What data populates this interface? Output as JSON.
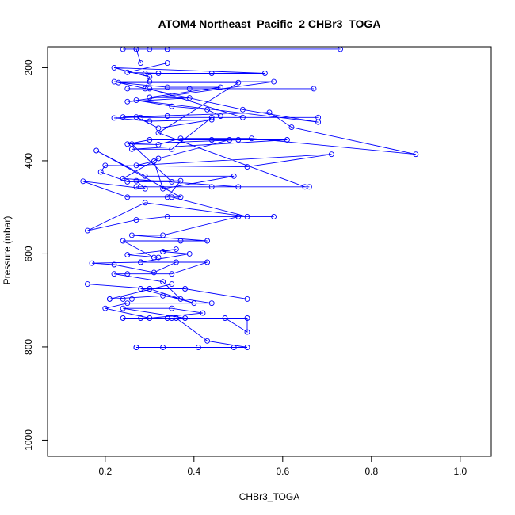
{
  "chart_data": {
    "type": "line",
    "title": "ATOM4 Northeast_Pacific_2 CHBr3_TOGA",
    "xlabel": "CHBr3_TOGA",
    "ylabel": "Pressure (mbar)",
    "xlim": [
      0.07,
      1.07
    ],
    "ylim": [
      1035,
      155
    ],
    "y_inverted": true,
    "x_ticks": [
      0.2,
      0.4,
      0.6,
      0.8,
      1.0
    ],
    "x_tick_labels": [
      "0.2",
      "0.4",
      "0.6",
      "0.8",
      "1.0"
    ],
    "y_ticks": [
      200,
      400,
      600,
      800,
      1000
    ],
    "y_tick_labels": [
      "200",
      "400",
      "600",
      "800",
      "1000"
    ],
    "line_color": "#0000ff",
    "marker": "open-circle",
    "grid": false,
    "series": [
      {
        "x": [
          0.27,
          0.33,
          0.41,
          0.27,
          0.49,
          0.52,
          0.43,
          0.36,
          0.24,
          0.35,
          0.52,
          0.52,
          0.47,
          0.34,
          0.28,
          0.38,
          0.24,
          0.35,
          0.42,
          0.3,
          0.2,
          0.25,
          0.44,
          0.33,
          0.21,
          0.26,
          0.52,
          0.38,
          0.28,
          0.4,
          0.3,
          0.16,
          0.35,
          0.21,
          0.24,
          0.37,
          0.33,
          0.22,
          0.25,
          0.35,
          0.43,
          0.28,
          0.36,
          0.31,
          0.22,
          0.17,
          0.28,
          0.39,
          0.33,
          0.36,
          0.25,
          0.32,
          0.31,
          0.24,
          0.37,
          0.43,
          0.26,
          0.33,
          0.5,
          0.58,
          0.34,
          0.27,
          0.16,
          0.29,
          0.52,
          0.35,
          0.25,
          0.15,
          0.29,
          0.27,
          0.37,
          0.34,
          0.37,
          0.18,
          0.29,
          0.49,
          0.33,
          0.31,
          0.27,
          0.71,
          0.52,
          0.2,
          0.19,
          0.25,
          0.35,
          0.26,
          0.32,
          0.37,
          0.53,
          0.9,
          0.62,
          0.57,
          0.24,
          0.27,
          0.32,
          0.44,
          0.3,
          0.22,
          0.34,
          0.46,
          0.43,
          0.35,
          0.27,
          0.68,
          0.51,
          0.22,
          0.3,
          0.58,
          0.25,
          0.39,
          0.3,
          0.46,
          0.34,
          0.23,
          0.5,
          0.32,
          0.65,
          0.66,
          0.27,
          0.44,
          0.5,
          0.24,
          0.32,
          0.48,
          0.3,
          0.25,
          0.5,
          0.44,
          0.61,
          0.26,
          0.35,
          0.44,
          0.28,
          0.68,
          0.51,
          0.3,
          0.25,
          0.67,
          0.39,
          0.29,
          0.3,
          0.22,
          0.56,
          0.44,
          0.29,
          0.32,
          0.25,
          0.34,
          0.28,
          0.27,
          0.34,
          0.24,
          0.3,
          0.34,
          0.73,
          0.27
        ],
        "y": [
          801,
          801,
          801,
          801,
          801,
          801,
          787,
          738,
          738,
          738,
          738,
          768,
          738,
          738,
          738,
          738,
          717,
          717,
          727,
          738,
          717,
          706,
          706,
          690,
          697,
          697,
          697,
          675,
          675,
          706,
          675,
          665,
          665,
          697,
          697,
          697,
          660,
          643,
          643,
          643,
          618,
          618,
          618,
          640,
          623,
          620,
          618,
          600,
          595,
          590,
          602,
          608,
          608,
          572,
          572,
          572,
          560,
          560,
          520,
          520,
          520,
          527,
          550,
          490,
          520,
          478,
          478,
          444,
          460,
          443,
          443,
          478,
          478,
          378,
          433,
          433,
          460,
          401,
          410,
          386,
          413,
          410,
          424,
          445,
          445,
          364,
          365,
          352,
          352,
          386,
          328,
          296,
          306,
          306,
          330,
          312,
          315,
          308,
          304,
          304,
          290,
          283,
          270,
          317,
          290,
          230,
          230,
          230,
          273,
          265,
          264,
          242,
          242,
          232,
          232,
          340,
          456,
          456,
          456,
          456,
          456,
          438,
          395,
          355,
          355,
          364,
          355,
          355,
          355,
          375,
          375,
          307,
          307,
          307,
          307,
          245,
          245,
          245,
          245,
          245,
          220,
          200,
          212,
          212,
          212,
          212,
          210,
          190,
          190,
          160,
          160,
          160,
          160,
          160,
          160,
          160
        ]
      }
    ]
  }
}
